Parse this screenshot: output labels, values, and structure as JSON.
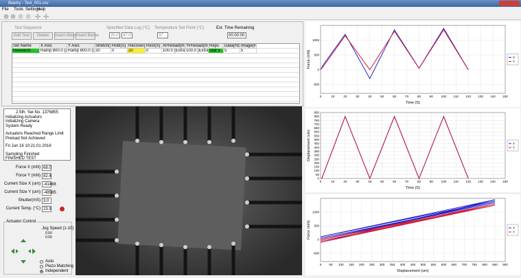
{
  "window": {
    "title": "Biaxtry - Test_001.csv",
    "menu": [
      "File",
      "Tools",
      "Settings",
      "Help"
    ]
  },
  "sequence": {
    "label": "Test Sequence",
    "buttons": [
      "Edit Test",
      "Delete",
      "Insert Above",
      "Insert Below"
    ],
    "log_label": "Specified Data Log (°C)",
    "log_values": [
      "20.0",
      "47.0"
    ],
    "temp_label": "Temperature Set Point (°C)",
    "temp_value": "37",
    "time_label": "Est. Time Remaining",
    "time_value": "00:00:00"
  },
  "table": {
    "headers": [
      "Set Name",
      "X Axis",
      "Y Axis",
      "Stretch(S)",
      "Hold(S)",
      "Recover(S)",
      "Rest(S)",
      "XPreload(mN)",
      "YPreload(mN)",
      "Reps",
      "Data(Hz)",
      "Image(Hz)"
    ],
    "rows": [
      [
        "Research",
        "Ramp 800.0 (um)",
        "Ramp 800.0 (um)",
        "20",
        "0",
        "20",
        "0",
        "100.0 (Extra)",
        "100.0 (Extra)",
        "Stat 5",
        "5",
        "5"
      ]
    ]
  },
  "log": [
    "2.5th. Ser.No. 1376855",
    "Initializing Actuators",
    "Initializing Camera",
    "System Ready",
    "Actuators Reached Range Limit",
    "Preload Not Achieved",
    "Fri Jun 16 10:21:01 2016",
    "Sampling Finished",
    "FINISHED TEST"
  ],
  "readouts": [
    {
      "label": "Force X (mN)",
      "value": "68.0"
    },
    {
      "label": "Force Y (mN)",
      "value": "82.4"
    },
    {
      "label": "Current Size X (um)",
      "value": "-41468"
    },
    {
      "label": "Current Size Y (um)",
      "value": "-48985"
    },
    {
      "label": "Shutter(mS)",
      "value": "3.0"
    },
    {
      "label": "Current Temp. (°C)",
      "value": "23.9"
    }
  ],
  "actuator": {
    "title": "Actuator Control",
    "jog_label": "Jog Speed (1-10)",
    "jog_values": [
      "0.50",
      "0.00"
    ],
    "modes": [
      "Auto",
      "Piezo Matching",
      "Independent"
    ]
  },
  "chart_data": [
    {
      "type": "line",
      "x_label": "Time (S)",
      "y_label": "Force (mN)",
      "xlim": [
        0,
        150
      ],
      "ylim": [
        -800,
        1500
      ],
      "xticks": [
        0,
        10,
        20,
        30,
        40,
        50,
        60,
        70,
        80,
        90,
        100,
        110,
        120,
        130,
        140,
        150
      ],
      "yticks": [
        -500,
        0,
        500,
        1000
      ],
      "grid": true,
      "legend": "right",
      "x": [
        0,
        2,
        20,
        40,
        60,
        80,
        100,
        120
      ],
      "series": [
        {
          "name": "X",
          "color": "#1f1fd0",
          "values": [
            0,
            150,
            1200,
            -300,
            1350,
            50,
            1400,
            0
          ]
        },
        {
          "name": "Y",
          "color": "#d01f3a",
          "values": [
            0,
            100,
            1150,
            0,
            1300,
            50,
            1350,
            0
          ]
        }
      ]
    },
    {
      "type": "line",
      "x_label": "Time (S)",
      "y_label": "Displacement (um)",
      "xlim": [
        0,
        150
      ],
      "ylim": [
        0,
        850
      ],
      "xticks": [
        0,
        10,
        20,
        30,
        40,
        50,
        60,
        70,
        80,
        90,
        100,
        110,
        120,
        130,
        140,
        150
      ],
      "yticks": [
        0,
        50,
        100,
        150,
        200,
        250,
        300,
        350,
        400,
        450,
        500,
        550,
        600,
        650,
        700,
        750,
        800,
        850
      ],
      "grid": true,
      "legend": "right",
      "x": [
        0,
        1,
        20,
        40,
        60,
        80,
        100,
        120
      ],
      "series": [
        {
          "name": "X",
          "color": "#1f1fd0",
          "values": [
            0,
            0,
            800,
            0,
            800,
            0,
            800,
            0
          ]
        },
        {
          "name": "Y",
          "color": "#d01f3a",
          "values": [
            0,
            0,
            800,
            0,
            800,
            0,
            800,
            0
          ]
        }
      ]
    },
    {
      "type": "line",
      "x_label": "Displacement (um)",
      "y_label": "Force (mN)",
      "xlim": [
        0,
        900
      ],
      "ylim": [
        -800,
        1500
      ],
      "xticks": [
        0,
        50,
        100,
        150,
        200,
        250,
        300,
        350,
        400,
        450,
        500,
        550,
        600,
        650,
        700,
        750,
        800,
        850,
        900
      ],
      "yticks": [
        -500,
        0,
        500,
        1000
      ],
      "grid": true,
      "legend": "right",
      "x": [
        0,
        850,
        0,
        850,
        0,
        850,
        0
      ],
      "series": [
        {
          "name": "X",
          "color": "#1f1fd0",
          "values": [
            -100,
            1450,
            100,
            1400,
            0,
            1350,
            50
          ]
        },
        {
          "name": "Y",
          "color": "#d01f3a",
          "values": [
            -50,
            1250,
            -100,
            1300,
            0,
            1250,
            -50
          ]
        }
      ]
    }
  ]
}
